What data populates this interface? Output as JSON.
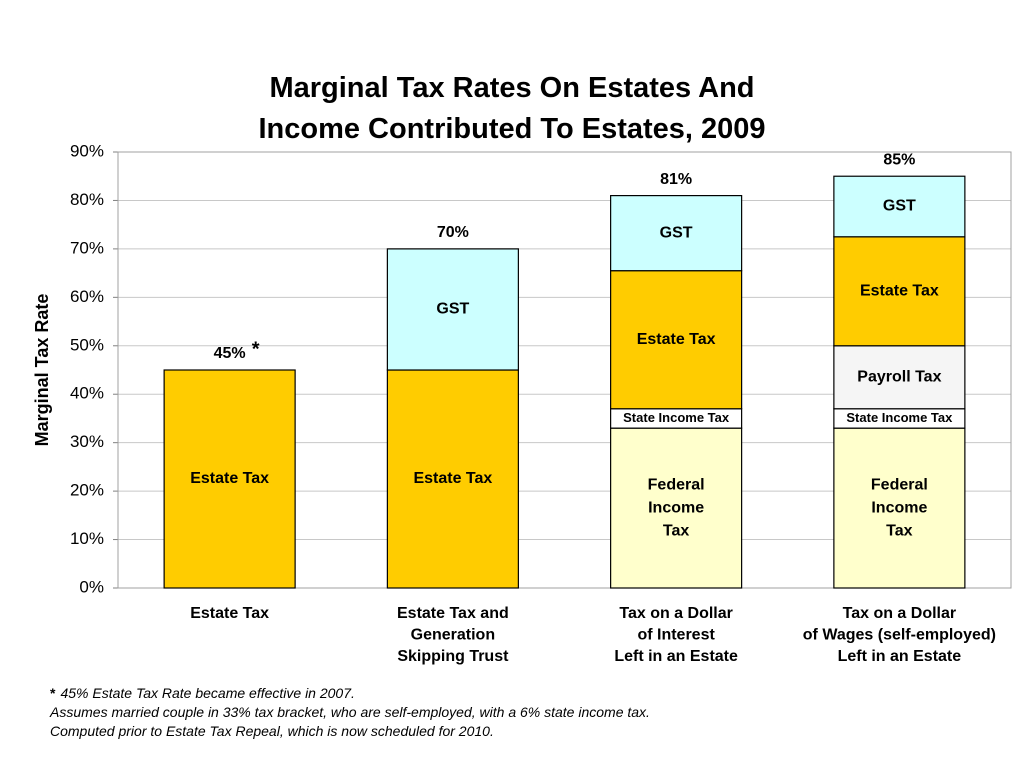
{
  "chart_data": {
    "type": "bar",
    "stacked": true,
    "title": [
      "Marginal Tax Rates On Estates And",
      "Income Contributed To Estates, 2009"
    ],
    "ylabel": "Marginal Tax Rate",
    "ylim": [
      0,
      90
    ],
    "yticks": [
      0,
      10,
      20,
      30,
      40,
      50,
      60,
      70,
      80,
      90
    ],
    "ytick_labels": [
      "0%",
      "10%",
      "20%",
      "30%",
      "40%",
      "50%",
      "60%",
      "70%",
      "80%",
      "90%"
    ],
    "grid": true,
    "categories": [
      [
        "Estate Tax"
      ],
      [
        "Estate Tax and",
        "Generation",
        "Skipping Trust"
      ],
      [
        "Tax on a Dollar",
        "of Interest",
        "Left in an Estate"
      ],
      [
        "Tax on a Dollar",
        "of Wages (self-employed)",
        "Left in an Estate"
      ]
    ],
    "bars": [
      {
        "total": 45,
        "total_label": "45%",
        "total_marker": "*",
        "segments": [
          {
            "label": [
              "Estate Tax"
            ],
            "value": 45,
            "color": "#FFCC00"
          }
        ]
      },
      {
        "total": 70,
        "total_label": "70%",
        "segments": [
          {
            "label": [
              "Estate Tax"
            ],
            "value": 45,
            "color": "#FFCC00"
          },
          {
            "label": [
              "GST"
            ],
            "value": 25,
            "color": "#CCFFFF"
          }
        ]
      },
      {
        "total": 81,
        "total_label": "81%",
        "segments": [
          {
            "label": [
              "Federal",
              "Income",
              "Tax"
            ],
            "value": 33,
            "color": "#FFFFCC"
          },
          {
            "label": [
              "State Income Tax"
            ],
            "value": 4,
            "color": "#FFFFFF"
          },
          {
            "label": [
              "Estate Tax"
            ],
            "value": 28.5,
            "color": "#FFCC00"
          },
          {
            "label": [
              "GST"
            ],
            "value": 15.5,
            "color": "#CCFFFF"
          }
        ]
      },
      {
        "total": 85,
        "total_label": "85%",
        "segments": [
          {
            "label": [
              "Federal",
              "Income",
              "Tax"
            ],
            "value": 33,
            "color": "#FFFFCC"
          },
          {
            "label": [
              "State Income Tax"
            ],
            "value": 4,
            "color": "#FFFFFF"
          },
          {
            "label": [
              "Payroll Tax"
            ],
            "value": 13,
            "color": "#F5F5F5"
          },
          {
            "label": [
              "Estate Tax"
            ],
            "value": 22.5,
            "color": "#FFCC00"
          },
          {
            "label": [
              "GST"
            ],
            "value": 12.5,
            "color": "#CCFFFF"
          }
        ]
      }
    ]
  },
  "footnotes": {
    "marker": "*",
    "lines": [
      "45% Estate Tax Rate became effective in 2007.",
      "Assumes married couple in 33% tax bracket, who are self-employed, with a 6% state income tax.",
      "Computed prior to Estate Tax Repeal, which is now scheduled for 2010."
    ]
  }
}
